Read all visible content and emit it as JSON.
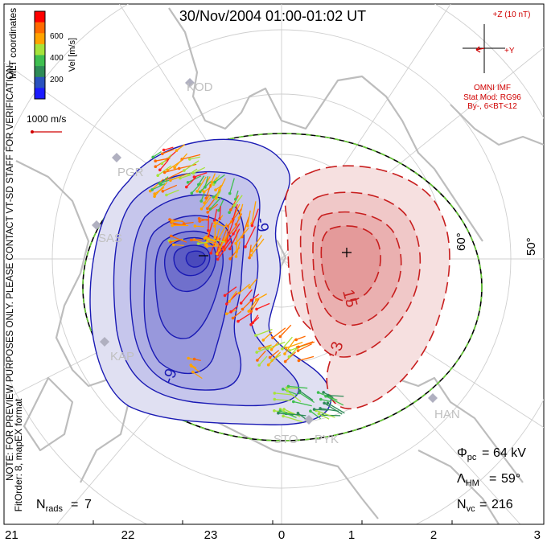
{
  "title": "30/Nov/2004 01:00-01:02 UT",
  "colorbar": {
    "ticks": [
      "600",
      "400",
      "200"
    ],
    "label": "Vel [m/s]",
    "colors": [
      "#ff0000",
      "#ff6a00",
      "#ffa300",
      "#a6e33b",
      "#3fbf50",
      "#2e8b57",
      "#2a52be",
      "#1c1cff"
    ]
  },
  "coords_label": "MLT coordinates",
  "scale_vector_label": "1000 m/s",
  "imf": {
    "bz_label": "+Z (10 nT)",
    "by_label": "+Y",
    "source": "OMNI IMF",
    "model": "Stat Mod: RG96",
    "bin": "By-, 6<BT<12"
  },
  "side_notes": {
    "preview": "NOTE: FOR PREVIEW PURPOSES ONLY. PLEASE CONTACT VT-SD STAFF FOR VERIFICATION.",
    "fit": "FitOrder: 8, mapEX format"
  },
  "latitude_labels": [
    "60°",
    "50°"
  ],
  "contour_labels": [
    "-9",
    "-9",
    "15",
    "-3"
  ],
  "stations": [
    "KOD",
    "PGR",
    "SAS",
    "KAP",
    "STO",
    "PYK",
    "HAN"
  ],
  "stats": {
    "phi_pc": "64 kV",
    "lambda_hm": "59°",
    "n_vc": "216",
    "n_rads": "7"
  },
  "mlt_ticks": [
    "21",
    "22",
    "23",
    "0",
    "1",
    "2",
    "3"
  ],
  "colors": {
    "negative": "#1a1ab4",
    "positive": "#c81e1e",
    "boundary": "#66cc33"
  }
}
